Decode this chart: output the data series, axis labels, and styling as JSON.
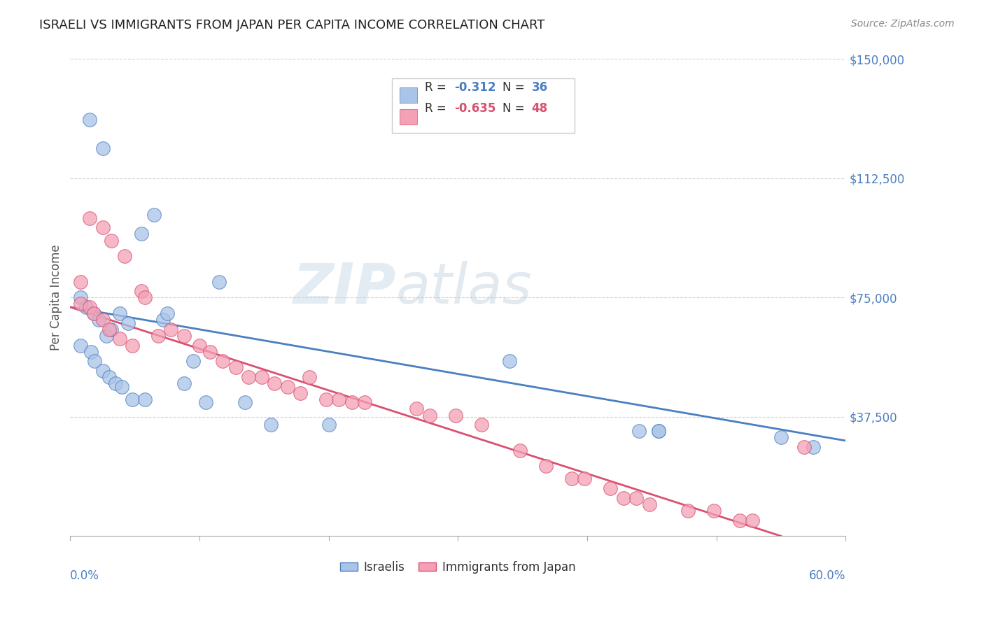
{
  "title": "ISRAELI VS IMMIGRANTS FROM JAPAN PER CAPITA INCOME CORRELATION CHART",
  "source": "Source: ZipAtlas.com",
  "ylabel": "Per Capita Income",
  "yticks": [
    0,
    37500,
    75000,
    112500,
    150000
  ],
  "xlim": [
    0.0,
    0.6
  ],
  "ylim": [
    0,
    150000
  ],
  "israeli_color": "#aac4e8",
  "japan_color": "#f4a0b5",
  "israeli_line_color": "#4a7fc1",
  "japan_line_color": "#d95070",
  "axis_label_color": "#4a7fc1",
  "israeli_scatter_x": [
    0.015,
    0.025,
    0.055,
    0.065,
    0.072,
    0.008,
    0.012,
    0.018,
    0.022,
    0.028,
    0.032,
    0.038,
    0.045,
    0.075,
    0.095,
    0.115,
    0.008,
    0.016,
    0.019,
    0.025,
    0.03,
    0.035,
    0.04,
    0.048,
    0.058,
    0.088,
    0.105,
    0.135,
    0.155,
    0.2,
    0.34,
    0.44,
    0.455,
    0.455,
    0.55,
    0.575
  ],
  "israeli_scatter_y": [
    131000,
    122000,
    95000,
    101000,
    68000,
    75000,
    72000,
    70000,
    68000,
    63000,
    65000,
    70000,
    67000,
    70000,
    55000,
    80000,
    60000,
    58000,
    55000,
    52000,
    50000,
    48000,
    47000,
    43000,
    43000,
    48000,
    42000,
    42000,
    35000,
    35000,
    55000,
    33000,
    33000,
    33000,
    31000,
    28000
  ],
  "japan_scatter_x": [
    0.008,
    0.015,
    0.025,
    0.032,
    0.042,
    0.055,
    0.008,
    0.015,
    0.018,
    0.025,
    0.03,
    0.038,
    0.048,
    0.058,
    0.068,
    0.078,
    0.088,
    0.1,
    0.108,
    0.118,
    0.128,
    0.138,
    0.148,
    0.158,
    0.168,
    0.178,
    0.198,
    0.208,
    0.218,
    0.228,
    0.268,
    0.278,
    0.298,
    0.318,
    0.348,
    0.368,
    0.388,
    0.398,
    0.418,
    0.428,
    0.438,
    0.448,
    0.185,
    0.478,
    0.498,
    0.518,
    0.528,
    0.568
  ],
  "japan_scatter_y": [
    80000,
    100000,
    97000,
    93000,
    88000,
    77000,
    73000,
    72000,
    70000,
    68000,
    65000,
    62000,
    60000,
    75000,
    63000,
    65000,
    63000,
    60000,
    58000,
    55000,
    53000,
    50000,
    50000,
    48000,
    47000,
    45000,
    43000,
    43000,
    42000,
    42000,
    40000,
    38000,
    38000,
    35000,
    27000,
    22000,
    18000,
    18000,
    15000,
    12000,
    12000,
    10000,
    50000,
    8000,
    8000,
    5000,
    5000,
    28000
  ],
  "israeli_line_x0": 0.0,
  "israeli_line_y0": 72000,
  "israeli_line_x1": 0.6,
  "israeli_line_y1": 30000,
  "japan_line_x0": 0.0,
  "japan_line_y0": 72000,
  "japan_line_x1": 0.55,
  "japan_line_y1": 0,
  "background_color": "#ffffff",
  "grid_color": "#cccccc",
  "title_color": "#222222",
  "watermark_zip": "ZIP",
  "watermark_atlas": "atlas"
}
